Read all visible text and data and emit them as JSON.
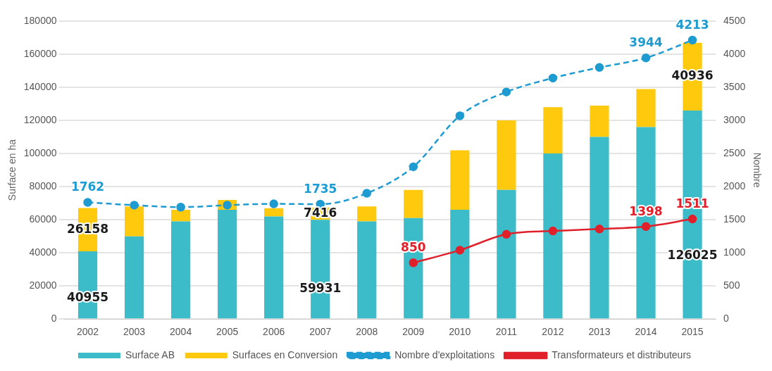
{
  "chart_data": {
    "type": "bar",
    "stacked": true,
    "ylabel": "Surface en ha",
    "y2label": "Nombre",
    "categories": [
      "2002",
      "2003",
      "2004",
      "2005",
      "2006",
      "2007",
      "2008",
      "2009",
      "2010",
      "2011",
      "2012",
      "2013",
      "2014",
      "2015"
    ],
    "series": [
      {
        "name": "Surface AB",
        "color": "#3bbcc8",
        "values": [
          40955,
          50000,
          59000,
          66000,
          62000,
          59931,
          59000,
          61000,
          66000,
          78000,
          100000,
          110000,
          116000,
          126025
        ],
        "value_labels": [
          "40955",
          null,
          null,
          null,
          null,
          "59931",
          null,
          null,
          null,
          null,
          null,
          null,
          null,
          "126025"
        ]
      },
      {
        "name": "Surfaces en Conversion",
        "color": "#ffc90e",
        "values": [
          26158,
          18000,
          7000,
          6000,
          5000,
          7416,
          9000,
          17000,
          36000,
          42000,
          28000,
          19000,
          23000,
          40936
        ],
        "value_labels": [
          "26158",
          null,
          null,
          null,
          null,
          "7416",
          null,
          null,
          null,
          null,
          null,
          null,
          null,
          "40936"
        ]
      },
      {
        "name": "Nombre d'exploitations",
        "type": "line",
        "axis": "y2",
        "color": "#1e9bd0",
        "line_style": "dashed",
        "marker": "circle",
        "values": [
          1762,
          1720,
          1690,
          1720,
          1740,
          1735,
          1900,
          2300,
          3070,
          3430,
          3640,
          3800,
          3944,
          4213
        ],
        "value_labels": [
          "1762",
          null,
          null,
          null,
          null,
          "1735",
          null,
          null,
          null,
          null,
          null,
          null,
          "3944",
          "4213"
        ]
      },
      {
        "name": "Transformateurs et distributeurs",
        "type": "line",
        "axis": "y2",
        "color": "#e0202a",
        "line_style": "solid",
        "marker": "circle",
        "values": [
          null,
          null,
          null,
          null,
          null,
          null,
          null,
          850,
          1040,
          1280,
          1330,
          1360,
          1398,
          1511
        ],
        "value_labels": [
          null,
          null,
          null,
          null,
          null,
          null,
          null,
          "850",
          null,
          null,
          null,
          null,
          "1398",
          "1511"
        ]
      }
    ],
    "ylim": [
      0,
      180000
    ],
    "yticks": [
      0,
      20000,
      40000,
      60000,
      80000,
      100000,
      120000,
      140000,
      160000,
      180000
    ],
    "y2lim": [
      0,
      4500
    ],
    "y2ticks": [
      0,
      500,
      1000,
      1500,
      2000,
      2500,
      3000,
      3500,
      4000,
      4500
    ],
    "grid": "y",
    "legend": "bottom"
  }
}
